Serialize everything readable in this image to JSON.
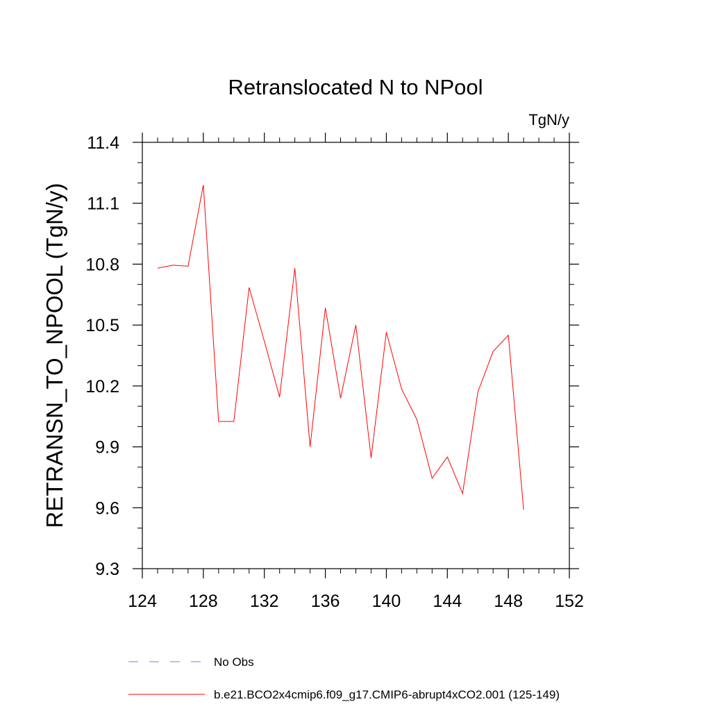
{
  "chart_data": {
    "type": "line",
    "title": "Retranslocated N to NPool",
    "units_label": "TgN/y",
    "xlabel": "",
    "ylabel": "RETRANSN_TO_NPOOL  (TgN/y)",
    "xlim": [
      124,
      152
    ],
    "ylim": [
      9.3,
      11.4
    ],
    "xticks": [
      124,
      128,
      132,
      136,
      140,
      144,
      148,
      152
    ],
    "yticks": [
      9.3,
      9.6,
      9.9,
      10.2,
      10.5,
      10.8,
      11.1,
      11.4
    ],
    "series": [
      {
        "name": "b.e21.BCO2x4cmip6.f09_g17.CMIP6-abrupt4xCO2.001 (125-149)",
        "color": "#ff0000",
        "x": [
          125,
          126,
          127,
          128,
          129,
          130,
          131,
          132,
          133,
          134,
          135,
          136,
          137,
          138,
          139,
          140,
          141,
          142,
          143,
          144,
          145,
          146,
          147,
          148,
          149
        ],
        "y": [
          10.78,
          10.795,
          10.79,
          11.19,
          10.025,
          10.025,
          10.685,
          10.42,
          10.145,
          10.78,
          9.9,
          10.585,
          10.14,
          10.5,
          9.845,
          10.465,
          10.185,
          10.035,
          9.745,
          9.85,
          9.67,
          10.17,
          10.37,
          10.45,
          9.59
        ]
      }
    ],
    "legend": [
      {
        "label": "No Obs",
        "color": "#7b7bd6",
        "style": "dashed"
      },
      {
        "label": "b.e21.BCO2x4cmip6.f09_g17.CMIP6-abrupt4xCO2.001 (125-149)",
        "color": "#ff0000",
        "style": "solid"
      }
    ]
  }
}
